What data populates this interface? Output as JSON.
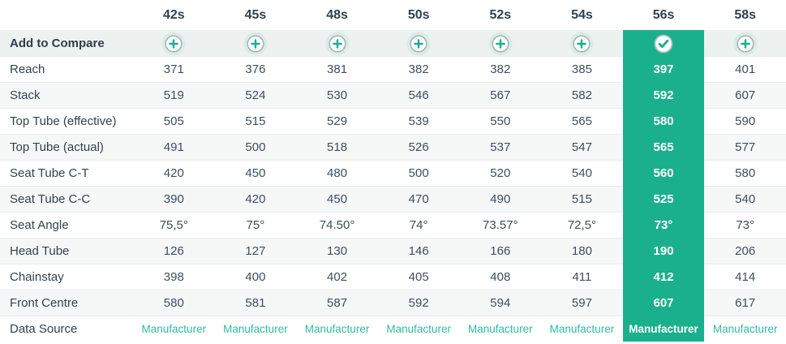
{
  "colors": {
    "selected_column_teal": "#1BB08D",
    "link_teal": "#2EBD9F",
    "plus_halo_mint": "#D9ECE6",
    "compare_row_bg": "#EDF1F0",
    "stripe_row_bg": "#F6F7F7",
    "label_navy": "#33424E",
    "value_slate": "#3E4E5D"
  },
  "icons": {
    "add": "plus-circle-icon",
    "selected": "check-circle-icon"
  },
  "header": {
    "sizes": [
      "42s",
      "45s",
      "48s",
      "50s",
      "52s",
      "54s",
      "56s",
      "58s"
    ],
    "selected_index": 6,
    "selected_size": "56s"
  },
  "compare": {
    "label": "Add to Compare"
  },
  "rows": [
    {
      "label": "Reach",
      "values": [
        "371",
        "376",
        "381",
        "382",
        "382",
        "385",
        "397",
        "401"
      ]
    },
    {
      "label": "Stack",
      "values": [
        "519",
        "524",
        "530",
        "546",
        "567",
        "582",
        "592",
        "607"
      ]
    },
    {
      "label": "Top Tube (effective)",
      "values": [
        "505",
        "515",
        "529",
        "539",
        "550",
        "565",
        "580",
        "590"
      ]
    },
    {
      "label": "Top Tube (actual)",
      "values": [
        "491",
        "500",
        "518",
        "526",
        "537",
        "547",
        "565",
        "577"
      ]
    },
    {
      "label": "Seat Tube C-T",
      "values": [
        "420",
        "450",
        "480",
        "500",
        "520",
        "540",
        "560",
        "580"
      ]
    },
    {
      "label": "Seat Tube C-C",
      "values": [
        "390",
        "420",
        "450",
        "470",
        "490",
        "515",
        "525",
        "540"
      ]
    },
    {
      "label": "Seat Angle",
      "values": [
        "75,5°",
        "75°",
        "74.50°",
        "74°",
        "73.57°",
        "72,5°",
        "73°",
        "73°"
      ]
    },
    {
      "label": "Head Tube",
      "values": [
        "126",
        "127",
        "130",
        "146",
        "166",
        "180",
        "190",
        "206"
      ]
    },
    {
      "label": "Chainstay",
      "values": [
        "398",
        "400",
        "402",
        "405",
        "408",
        "411",
        "412",
        "414"
      ]
    },
    {
      "label": "Front Centre",
      "values": [
        "580",
        "581",
        "587",
        "592",
        "594",
        "597",
        "607",
        "617"
      ]
    }
  ],
  "data_source": {
    "label": "Data Source",
    "values": [
      "Manufacturer",
      "Manufacturer",
      "Manufacturer",
      "Manufacturer",
      "Manufacturer",
      "Manufacturer",
      "Manufacturer",
      "Manufacturer"
    ]
  }
}
